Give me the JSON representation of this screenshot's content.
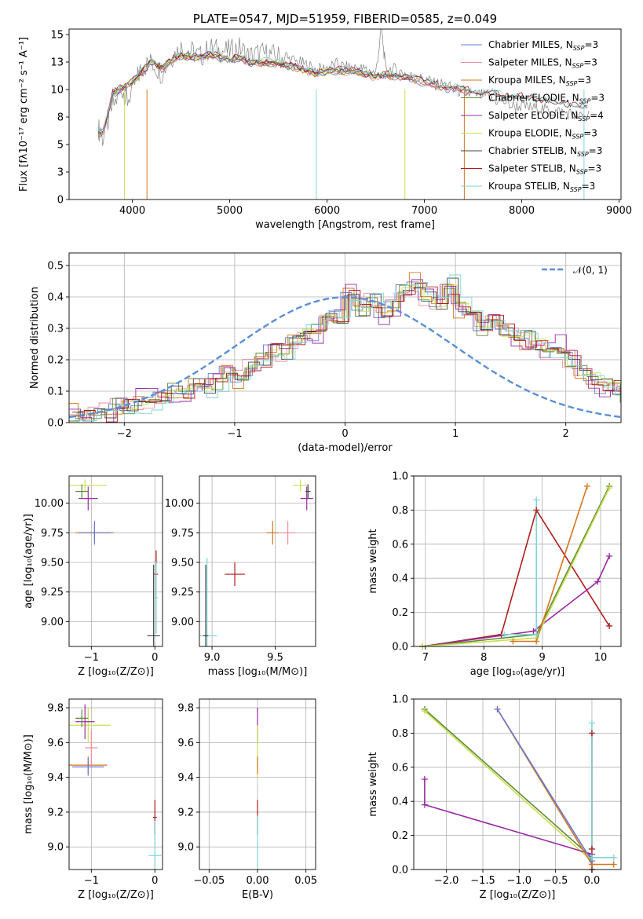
{
  "chart_data": [
    {
      "id": "spectrum",
      "type": "line",
      "title": "PLATE=0547, MJD=51959, FIBERID=0585, z=0.049",
      "xlabel": "wavelength [Angstrom, rest frame]",
      "ylabel": "Flux [fλ10⁻¹⁷ erg cm⁻² s⁻¹ A⁻¹]",
      "xlim": [
        3350,
        9020
      ],
      "ylim": [
        0,
        15.5
      ],
      "xticks": [
        4000,
        5000,
        6000,
        7000,
        8000,
        9000
      ],
      "yticks": [
        0.0,
        2.5,
        5.0,
        7.5,
        10.0,
        12.5,
        15.0
      ],
      "grid": false,
      "legend_position": "top-right",
      "observed_series": "gray",
      "observed_x": [
        3650,
        3700,
        3800,
        3900,
        3950,
        4050,
        4100,
        4200,
        4300,
        4400,
        4500,
        4600,
        4700,
        4800,
        4900,
        5000,
        5100,
        5200,
        5300,
        5400,
        5500,
        5600,
        5700,
        5800,
        5900,
        6000,
        6100,
        6200,
        6300,
        6400,
        6500,
        6560,
        6600,
        6700,
        6800,
        6900,
        7000,
        7100,
        7200,
        7300,
        7400,
        7500,
        7600,
        7700,
        7800,
        7900,
        8000,
        8100,
        8200,
        8300,
        8400,
        8500,
        8600,
        8700
      ],
      "observed_y": [
        6.5,
        5.5,
        8.5,
        10.0,
        9.0,
        11.0,
        12.0,
        12.5,
        11.5,
        13.0,
        13.8,
        13.5,
        13.0,
        13.8,
        13.5,
        13.5,
        13.8,
        13.0,
        13.3,
        13.2,
        13.0,
        12.8,
        12.5,
        12.2,
        11.8,
        12.0,
        12.3,
        12.0,
        12.0,
        11.8,
        11.5,
        15.5,
        12.0,
        11.8,
        11.5,
        11.0,
        11.0,
        10.5,
        10.5,
        10.0,
        9.8,
        9.5,
        9.5,
        9.0,
        9.0,
        8.5,
        8.5,
        8.3,
        8.3,
        8.0,
        8.0,
        7.8,
        7.5,
        7.8
      ],
      "model_x": [
        3650,
        3700,
        3800,
        3900,
        4000,
        4100,
        4200,
        4300,
        4400,
        4500,
        4600,
        4700,
        4800,
        4900,
        5000,
        5100,
        5200,
        5300,
        5400,
        5500,
        5600,
        5700,
        5800,
        5900,
        6000,
        6100,
        6200,
        6300,
        6400,
        6500,
        6600,
        6700,
        6800,
        6900,
        7000,
        7100,
        7200,
        7300,
        7400,
        7500,
        7600,
        7700,
        7800,
        7900,
        8000,
        8100,
        8200,
        8300,
        8400,
        8500,
        8600,
        8700
      ],
      "model_y": [
        6.0,
        6.0,
        9.5,
        10.0,
        10.5,
        11.5,
        12.3,
        11.8,
        12.5,
        13.0,
        12.8,
        12.8,
        13.0,
        12.8,
        12.5,
        12.8,
        12.3,
        12.3,
        12.3,
        12.2,
        12.0,
        11.8,
        11.5,
        11.3,
        11.5,
        11.6,
        11.5,
        11.5,
        11.2,
        11.0,
        11.2,
        11.0,
        11.0,
        10.8,
        10.5,
        10.3,
        10.0,
        10.0,
        9.8,
        9.6,
        9.5,
        9.5,
        9.3,
        9.0,
        9.2,
        9.0,
        8.8,
        8.8,
        8.5,
        8.4,
        8.3,
        8.2
      ],
      "series": [
        {
          "name": "Chabrier MILES, N",
          "sub": "SSP",
          "suffix": "=3",
          "color": "#6a79cf",
          "dip_x": [],
          "end_x": 7420
        },
        {
          "name": "Salpeter MILES, N",
          "sub": "SSP",
          "suffix": "=3",
          "color": "#f28da0",
          "dip_x": [],
          "end_x": 7420
        },
        {
          "name": "Kroupa MILES, N",
          "sub": "SSP",
          "suffix": "=3",
          "color": "#d2761b",
          "dip_x": [
            4150,
            7410
          ],
          "end_x": 7420
        },
        {
          "name": "Chabrier ELODIE, N",
          "sub": "SSP",
          "suffix": "=3",
          "color": "#5c8a3a",
          "dip_x": [],
          "end_x": 6800
        },
        {
          "name": "Salpeter ELODIE, N",
          "sub": "SSP",
          "suffix": "=4",
          "color": "#9a2aa3",
          "dip_x": [],
          "end_x": 6800
        },
        {
          "name": "Kroupa ELODIE, N",
          "sub": "SSP",
          "suffix": "=3",
          "color": "#c9df4a",
          "dip_x": [
            3920,
            6800
          ],
          "end_x": 6800
        },
        {
          "name": "Chabrier STELIB, N",
          "sub": "SSP",
          "suffix": "=3",
          "color": "#444444",
          "dip_x": [],
          "end_x": 8700
        },
        {
          "name": "Salpeter STELIB, N",
          "sub": "SSP",
          "suffix": "=3",
          "color": "#b01c1c",
          "dip_x": [],
          "end_x": 8700
        },
        {
          "name": "Kroupa STELIB, N",
          "sub": "SSP",
          "suffix": "=3",
          "color": "#7ed6d6",
          "dip_x": [
            5890,
            8640
          ],
          "end_x": 8700
        }
      ]
    },
    {
      "id": "residuals",
      "type": "histogram",
      "xlabel": "(data-model)/error",
      "ylabel": "Normed distribution",
      "xlim": [
        -2.5,
        2.5
      ],
      "ylim": [
        0,
        0.54
      ],
      "xticks": [
        -2,
        -1,
        0,
        1,
        2
      ],
      "yticks": [
        0.0,
        0.1,
        0.2,
        0.3,
        0.4,
        0.5
      ],
      "grid": true,
      "legend_position": "top-right",
      "legend": [
        "𝒩(0, 1)"
      ],
      "bin_width": 0.1,
      "bin_start": -2.5,
      "hist_values": [
        0.025,
        0.02,
        0.025,
        0.035,
        0.06,
        0.05,
        0.06,
        0.07,
        0.08,
        0.1,
        0.11,
        0.12,
        0.11,
        0.13,
        0.16,
        0.14,
        0.18,
        0.2,
        0.23,
        0.22,
        0.26,
        0.3,
        0.29,
        0.34,
        0.33,
        0.39,
        0.36,
        0.39,
        0.35,
        0.38,
        0.42,
        0.44,
        0.4,
        0.38,
        0.44,
        0.37,
        0.34,
        0.3,
        0.33,
        0.29,
        0.28,
        0.27,
        0.25,
        0.22,
        0.23,
        0.2,
        0.16,
        0.15,
        0.12,
        0.11,
        0.09,
        0.08,
        0.07,
        0.06,
        0.055,
        0.045,
        0.04,
        0.035,
        0.03,
        0.02
      ],
      "series_offsets": [
        0.012,
        -0.01,
        0.02,
        -0.006,
        0.03,
        -0.02,
        0.0,
        0.015,
        -0.015
      ],
      "gaussian": {
        "mu": 0,
        "sigma": 1,
        "color": "#5a8fd6"
      }
    },
    {
      "id": "age-vs-Z",
      "type": "errorbar",
      "xlabel": "Z [log₁₀(Z/Z⊙)]",
      "ylabel": "age  [log₁₀(age/yr)]",
      "xlim": [
        -1.35,
        0.12
      ],
      "ylim": [
        8.79,
        10.23
      ],
      "xticks": [
        -1,
        0
      ],
      "yticks": [
        9.0,
        9.25,
        9.5,
        9.75,
        10.0
      ],
      "grid": true,
      "points": [
        {
          "x": -0.95,
          "y": 9.75,
          "xerr": 0.3,
          "yerr": 0.07,
          "color": "#d2761b"
        },
        {
          "x": -0.95,
          "y": 9.75,
          "xerr": 0.25,
          "yerr": 0.1,
          "color": "#6a79cf"
        },
        {
          "x": -1.1,
          "y": 10.15,
          "xerr": 0.35,
          "yerr": 0.05,
          "color": "#c9df4a"
        },
        {
          "x": -1.05,
          "y": 10.04,
          "xerr": 0.15,
          "yerr": 0.1,
          "color": "#9a2aa3"
        },
        {
          "x": -1.15,
          "y": 10.1,
          "xerr": 0.1,
          "yerr": 0.06,
          "color": "#5c8a3a"
        },
        {
          "x": 0.02,
          "y": 9.4,
          "xerr": 0.03,
          "yerr": 0.2,
          "color": "#b01c1c"
        },
        {
          "x": 0.02,
          "y": 9.2,
          "xerr": 0.03,
          "yerr": 0.3,
          "color": "#7ed6d6"
        },
        {
          "x": -0.02,
          "y": 8.88,
          "xerr": 0.1,
          "yerr": 0.6,
          "color": "#444444"
        }
      ]
    },
    {
      "id": "age-vs-mass",
      "type": "errorbar",
      "xlabel": "mass [log₁₀(M/M⊙)]",
      "ylabel": "",
      "xlim": [
        8.9,
        9.82
      ],
      "ylim": [
        8.79,
        10.23
      ],
      "xticks": [
        9.0,
        9.5
      ],
      "yticks": [
        9.0,
        9.25,
        9.5,
        9.75,
        10.0
      ],
      "grid": true,
      "points": [
        {
          "x": 9.48,
          "y": 9.75,
          "xerr": 0.05,
          "yerr": 0.1,
          "color": "#d2761b"
        },
        {
          "x": 9.6,
          "y": 9.75,
          "xerr": 0.06,
          "yerr": 0.1,
          "color": "#f28da0"
        },
        {
          "x": 9.7,
          "y": 10.15,
          "xerr": 0.06,
          "yerr": 0.05,
          "color": "#c9df4a"
        },
        {
          "x": 9.75,
          "y": 10.04,
          "xerr": 0.05,
          "yerr": 0.1,
          "color": "#9a2aa3"
        },
        {
          "x": 9.76,
          "y": 10.1,
          "xerr": 0.02,
          "yerr": 0.06,
          "color": "#444444"
        },
        {
          "x": 9.18,
          "y": 9.4,
          "xerr": 0.08,
          "yerr": 0.1,
          "color": "#b01c1c"
        },
        {
          "x": 8.96,
          "y": 8.88,
          "xerr": 0.08,
          "yerr": 0.66,
          "color": "#7ed6d6"
        },
        {
          "x": 8.95,
          "y": 8.88,
          "xerr": 0.02,
          "yerr": 0.6,
          "color": "#444444"
        }
      ]
    },
    {
      "id": "weight-vs-age",
      "type": "line",
      "xlabel": "age  [log₁₀(age/yr)]",
      "ylabel": "mass weight",
      "xlim": [
        6.8,
        10.35
      ],
      "ylim": [
        0,
        1.0
      ],
      "xticks": [
        7,
        8,
        9,
        10
      ],
      "yticks": [
        0.0,
        0.2,
        0.4,
        0.6,
        0.8,
        1.0
      ],
      "grid": true,
      "series": [
        {
          "color": "#b01c1c",
          "x": [
            6.95,
            8.3,
            8.9,
            10.15
          ],
          "y": [
            0.0,
            0.07,
            0.8,
            0.12
          ]
        },
        {
          "color": "#9a2aa3",
          "x": [
            6.95,
            8.85,
            9.95,
            10.15
          ],
          "y": [
            0.0,
            0.09,
            0.38,
            0.53
          ]
        },
        {
          "color": "#5c8a3a",
          "x": [
            6.95,
            8.9,
            10.15
          ],
          "y": [
            0.0,
            0.07,
            0.94
          ]
        },
        {
          "color": "#c9df4a",
          "x": [
            6.95,
            8.9,
            10.15
          ],
          "y": [
            0.0,
            0.05,
            0.93
          ]
        },
        {
          "color": "#d2761b",
          "x": [
            8.5,
            8.9,
            9.77
          ],
          "y": [
            0.03,
            0.03,
            0.94
          ]
        },
        {
          "color": "#7ed6d6",
          "x": [
            8.35,
            8.9,
            8.9
          ],
          "y": [
            0.07,
            0.07,
            0.86
          ]
        }
      ]
    },
    {
      "id": "mass-vs-Z",
      "type": "errorbar",
      "xlabel": "Z [log₁₀(Z/Z⊙)]",
      "ylabel": "mass [log₁₀(M/M⊙)]",
      "xlim": [
        -1.35,
        0.12
      ],
      "ylim": [
        8.87,
        9.85
      ],
      "xticks": [
        -1,
        0
      ],
      "yticks": [
        9.0,
        9.2,
        9.4,
        9.6,
        9.8
      ],
      "grid": true,
      "points": [
        {
          "x": -1.05,
          "y": 9.47,
          "xerr": 0.3,
          "yerr": 0.05,
          "color": "#d2761b"
        },
        {
          "x": -1.05,
          "y": 9.46,
          "xerr": 0.25,
          "yerr": 0.05,
          "color": "#6a79cf"
        },
        {
          "x": -1.05,
          "y": 9.7,
          "xerr": 0.35,
          "yerr": 0.1,
          "color": "#c9df4a"
        },
        {
          "x": -1.1,
          "y": 9.72,
          "xerr": 0.15,
          "yerr": 0.1,
          "color": "#9a2aa3"
        },
        {
          "x": -1.15,
          "y": 9.74,
          "xerr": 0.1,
          "yerr": 0.05,
          "color": "#5c8a3a"
        },
        {
          "x": -1.0,
          "y": 9.57,
          "xerr": 0.1,
          "yerr": 0.1,
          "color": "#f28da0"
        },
        {
          "x": 0.0,
          "y": 9.17,
          "xerr": 0.03,
          "yerr": 0.1,
          "color": "#b01c1c"
        },
        {
          "x": 0.0,
          "y": 8.95,
          "xerr": 0.1,
          "yerr": 0.2,
          "color": "#7ed6d6"
        }
      ]
    },
    {
      "id": "mass-vs-EBV",
      "type": "errorbar",
      "xlabel": "E(B-V)",
      "ylabel": "",
      "xlim": [
        -0.06,
        0.06
      ],
      "ylim": [
        8.87,
        9.85
      ],
      "xticks": [
        -0.05,
        0.0,
        0.05
      ],
      "yticks": [
        9.0,
        9.2,
        9.4,
        9.6,
        9.8
      ],
      "grid": true,
      "points": [
        {
          "x": 0.0,
          "y": 9.7,
          "xerr": 0.0,
          "yerr": 0.1,
          "color": "#9a2aa3"
        },
        {
          "x": 0.0,
          "y": 9.55,
          "xerr": 0.0,
          "yerr": 0.15,
          "color": "#c9df4a"
        },
        {
          "x": 0.0,
          "y": 9.47,
          "xerr": 0.0,
          "yerr": 0.05,
          "color": "#d2761b"
        },
        {
          "x": 0.0,
          "y": 9.17,
          "xerr": 0.0,
          "yerr": 0.1,
          "color": "#b01c1c"
        },
        {
          "x": 0.0,
          "y": 8.98,
          "xerr": 0.0,
          "yerr": 0.2,
          "color": "#7ed6d6"
        }
      ]
    },
    {
      "id": "weight-vs-Z",
      "type": "line",
      "xlabel": "Z [log₁₀(Z/Z⊙)]",
      "ylabel": "mass weight",
      "xlim": [
        -2.45,
        0.4
      ],
      "ylim": [
        0,
        1.0
      ],
      "xticks": [
        -2.0,
        -1.5,
        -1.0,
        -0.5,
        0.0
      ],
      "yticks": [
        0.0,
        0.2,
        0.4,
        0.6,
        0.8,
        1.0
      ],
      "grid": true,
      "series": [
        {
          "color": "#5c8a3a",
          "x": [
            -2.3,
            0.0,
            0.0
          ],
          "y": [
            0.94,
            0.07,
            0.0
          ]
        },
        {
          "color": "#c9df4a",
          "x": [
            -2.3,
            0.0,
            0.0
          ],
          "y": [
            0.93,
            0.05,
            0.0
          ]
        },
        {
          "color": "#9a2aa3",
          "x": [
            -2.3,
            -2.3,
            0.0,
            0.0
          ],
          "y": [
            0.53,
            0.38,
            0.09,
            0.0
          ]
        },
        {
          "color": "#d2761b",
          "x": [
            -1.3,
            0.0,
            0.0,
            0.3
          ],
          "y": [
            0.94,
            0.03,
            0.03,
            0.03
          ]
        },
        {
          "color": "#6a79cf",
          "x": [
            -1.3,
            0.0
          ],
          "y": [
            0.94,
            0.05
          ]
        },
        {
          "color": "#b01c1c",
          "x": [
            0.0,
            0.0
          ],
          "y": [
            0.8,
            0.12
          ]
        },
        {
          "color": "#7ed6d6",
          "x": [
            0.0,
            0.0,
            0.3
          ],
          "y": [
            0.86,
            0.07,
            0.07
          ]
        }
      ]
    }
  ]
}
